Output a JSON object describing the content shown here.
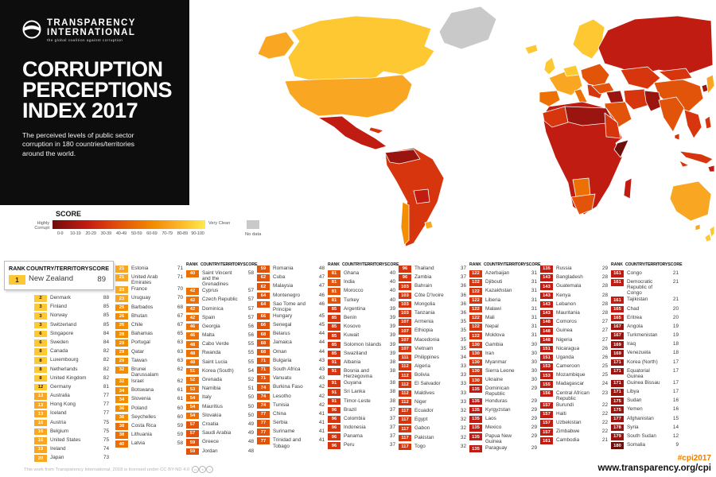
{
  "brand": {
    "logo_line1": "TRANSPARENCY",
    "logo_line2": "INTERNATIONAL",
    "tagline": "the global coalition against corruption",
    "title_lines": [
      "CORRUPTION",
      "PERCEPTIONS",
      "INDEX 2017"
    ],
    "subtitle": "The perceived levels of public sector corruption in 180 countries/territories around the world."
  },
  "legend": {
    "title": "SCORE",
    "left_label": "Highly Corrupt",
    "right_label": "Very Clean",
    "ticks": [
      "0-9",
      "10-19",
      "20-29",
      "30-39",
      "40-49",
      "50-59",
      "60-69",
      "70-79",
      "80-89",
      "90-100"
    ],
    "no_data_label": "No data",
    "no_data_color": "#c9c9c9",
    "scale_colors": [
      "#6e0f0b",
      "#9a1410",
      "#c11c12",
      "#d6350e",
      "#e2540a",
      "#ec7004",
      "#f28e00",
      "#f9a722",
      "#fdc831",
      "#ffe94e"
    ]
  },
  "table": {
    "headers": {
      "rank": "RANK",
      "country": "COUNTRY/TERRITORY",
      "score": "SCORE"
    },
    "columns": [
      {
        "featured": true,
        "header": true,
        "rows": [
          [
            1,
            "New Zealand",
            89
          ],
          [
            2,
            "Denmark",
            88
          ],
          [
            3,
            "Finland",
            85
          ],
          [
            3,
            "Norway",
            85
          ],
          [
            3,
            "Switzerland",
            85
          ],
          [
            6,
            "Singapore",
            84
          ],
          [
            6,
            "Sweden",
            84
          ],
          [
            8,
            "Canada",
            82
          ],
          [
            8,
            "Luxembourg",
            82
          ],
          [
            8,
            "Netherlands",
            82
          ],
          [
            8,
            "United Kingdom",
            82
          ],
          [
            12,
            "Germany",
            81
          ],
          [
            13,
            "Australia",
            77
          ],
          [
            13,
            "Hong Kong",
            77
          ],
          [
            13,
            "Iceland",
            77
          ],
          [
            16,
            "Austria",
            75
          ],
          [
            16,
            "Belgium",
            75
          ],
          [
            16,
            "United States",
            75
          ],
          [
            19,
            "Ireland",
            74
          ],
          [
            20,
            "Japan",
            73
          ]
        ]
      },
      {
        "featured": false,
        "header": false,
        "rows": [
          [
            21,
            "Estonia",
            71
          ],
          [
            21,
            "United Arab Emirates",
            71
          ],
          [
            23,
            "France",
            70
          ],
          [
            23,
            "Uruguay",
            70
          ],
          [
            25,
            "Barbados",
            68
          ],
          [
            26,
            "Bhutan",
            67
          ],
          [
            26,
            "Chile",
            67
          ],
          [
            28,
            "Bahamas",
            65
          ],
          [
            29,
            "Portugal",
            63
          ],
          [
            29,
            "Qatar",
            63
          ],
          [
            29,
            "Taiwan",
            63
          ],
          [
            32,
            "Brunei Darussalam",
            62
          ],
          [
            32,
            "Israel",
            62
          ],
          [
            34,
            "Botswana",
            61
          ],
          [
            34,
            "Slovenia",
            61
          ],
          [
            36,
            "Poland",
            60
          ],
          [
            36,
            "Seychelles",
            60
          ],
          [
            38,
            "Costa Rica",
            59
          ],
          [
            38,
            "Lithuania",
            59
          ],
          [
            40,
            "Latvia",
            58
          ]
        ]
      },
      {
        "featured": false,
        "header": true,
        "rows": [
          [
            40,
            "Saint Vincent and the Grenadines",
            58
          ],
          [
            42,
            "Cyprus",
            57
          ],
          [
            42,
            "Czech Republic",
            57
          ],
          [
            42,
            "Dominica",
            57
          ],
          [
            42,
            "Spain",
            57
          ],
          [
            46,
            "Georgia",
            56
          ],
          [
            46,
            "Malta",
            56
          ],
          [
            48,
            "Cabo Verde",
            55
          ],
          [
            48,
            "Rwanda",
            55
          ],
          [
            48,
            "Saint Lucia",
            55
          ],
          [
            51,
            "Korea (South)",
            54
          ],
          [
            52,
            "Grenada",
            52
          ],
          [
            53,
            "Namibia",
            51
          ],
          [
            54,
            "Italy",
            50
          ],
          [
            54,
            "Mauritius",
            50
          ],
          [
            54,
            "Slovakia",
            50
          ],
          [
            57,
            "Croatia",
            49
          ],
          [
            57,
            "Saudi Arabia",
            49
          ],
          [
            59,
            "Greece",
            48
          ],
          [
            59,
            "Jordan",
            48
          ]
        ]
      },
      {
        "featured": false,
        "header": false,
        "rows": [
          [
            59,
            "Romania",
            48
          ],
          [
            62,
            "Cuba",
            47
          ],
          [
            62,
            "Malaysia",
            47
          ],
          [
            64,
            "Montenegro",
            46
          ],
          [
            64,
            "Sao Tome and Principe",
            46
          ],
          [
            66,
            "Hungary",
            45
          ],
          [
            66,
            "Senegal",
            45
          ],
          [
            68,
            "Belarus",
            44
          ],
          [
            68,
            "Jamaica",
            44
          ],
          [
            68,
            "Oman",
            44
          ],
          [
            71,
            "Bulgaria",
            43
          ],
          [
            71,
            "South Africa",
            43
          ],
          [
            71,
            "Vanuatu",
            43
          ],
          [
            74,
            "Burkina Faso",
            42
          ],
          [
            74,
            "Lesotho",
            42
          ],
          [
            74,
            "Tunisia",
            42
          ],
          [
            77,
            "China",
            41
          ],
          [
            77,
            "Serbia",
            41
          ],
          [
            77,
            "Suriname",
            41
          ],
          [
            77,
            "Trinidad and Tobago",
            41
          ]
        ]
      },
      {
        "featured": false,
        "header": true,
        "rows": [
          [
            81,
            "Ghana",
            40
          ],
          [
            81,
            "India",
            40
          ],
          [
            81,
            "Morocco",
            40
          ],
          [
            81,
            "Turkey",
            40
          ],
          [
            85,
            "Argentina",
            39
          ],
          [
            85,
            "Benin",
            39
          ],
          [
            85,
            "Kosovo",
            39
          ],
          [
            85,
            "Kuwait",
            39
          ],
          [
            85,
            "Solomon Islands",
            39
          ],
          [
            85,
            "Swaziland",
            39
          ],
          [
            91,
            "Albania",
            38
          ],
          [
            91,
            "Bosnia and Herzegovina",
            38
          ],
          [
            91,
            "Guyana",
            38
          ],
          [
            91,
            "Sri Lanka",
            38
          ],
          [
            91,
            "Timor-Leste",
            38
          ],
          [
            96,
            "Brazil",
            37
          ],
          [
            96,
            "Colombia",
            37
          ],
          [
            96,
            "Indonesia",
            37
          ],
          [
            96,
            "Panama",
            37
          ],
          [
            96,
            "Peru",
            37
          ]
        ]
      },
      {
        "featured": false,
        "header": false,
        "rows": [
          [
            96,
            "Thailand",
            37
          ],
          [
            96,
            "Zambia",
            37
          ],
          [
            103,
            "Bahrain",
            36
          ],
          [
            103,
            "Côte D'Ivoire",
            36
          ],
          [
            103,
            "Mongolia",
            36
          ],
          [
            103,
            "Tanzania",
            36
          ],
          [
            107,
            "Armenia",
            35
          ],
          [
            107,
            "Ethiopia",
            35
          ],
          [
            107,
            "Macedonia",
            35
          ],
          [
            107,
            "Vietnam",
            35
          ],
          [
            111,
            "Philippines",
            34
          ],
          [
            112,
            "Algeria",
            33
          ],
          [
            112,
            "Bolivia",
            33
          ],
          [
            112,
            "El Salvador",
            33
          ],
          [
            112,
            "Maldives",
            33
          ],
          [
            112,
            "Niger",
            33
          ],
          [
            117,
            "Ecuador",
            32
          ],
          [
            117,
            "Egypt",
            32
          ],
          [
            117,
            "Gabon",
            32
          ],
          [
            117,
            "Pakistan",
            32
          ],
          [
            117,
            "Togo",
            32
          ]
        ]
      },
      {
        "featured": false,
        "header": true,
        "rows": [
          [
            122,
            "Azerbaijan",
            31
          ],
          [
            122,
            "Djibouti",
            31
          ],
          [
            122,
            "Kazakhstan",
            31
          ],
          [
            122,
            "Liberia",
            31
          ],
          [
            122,
            "Malawi",
            31
          ],
          [
            122,
            "Mali",
            31
          ],
          [
            122,
            "Nepal",
            31
          ],
          [
            122,
            "Moldova",
            31
          ],
          [
            130,
            "Gambia",
            30
          ],
          [
            130,
            "Iran",
            30
          ],
          [
            130,
            "Myanmar",
            30
          ],
          [
            130,
            "Sierra Leone",
            30
          ],
          [
            130,
            "Ukraine",
            30
          ],
          [
            135,
            "Dominican Republic",
            29
          ],
          [
            135,
            "Honduras",
            29
          ],
          [
            135,
            "Kyrgyzstan",
            29
          ],
          [
            135,
            "Laos",
            29
          ],
          [
            135,
            "Mexico",
            29
          ],
          [
            135,
            "Papua New Guinea",
            29
          ],
          [
            135,
            "Paraguay",
            29
          ]
        ]
      },
      {
        "featured": false,
        "header": false,
        "rows": [
          [
            135,
            "Russia",
            29
          ],
          [
            143,
            "Bangladesh",
            28
          ],
          [
            143,
            "Guatemala",
            28
          ],
          [
            143,
            "Kenya",
            28
          ],
          [
            143,
            "Lebanon",
            28
          ],
          [
            143,
            "Mauritania",
            28
          ],
          [
            148,
            "Comoros",
            27
          ],
          [
            148,
            "Guinea",
            27
          ],
          [
            148,
            "Nigeria",
            27
          ],
          [
            151,
            "Nicaragua",
            26
          ],
          [
            151,
            "Uganda",
            26
          ],
          [
            153,
            "Cameroon",
            25
          ],
          [
            153,
            "Mozambique",
            25
          ],
          [
            155,
            "Madagascar",
            24
          ],
          [
            156,
            "Central African Republic",
            23
          ],
          [
            157,
            "Burundi",
            22
          ],
          [
            157,
            "Haiti",
            22
          ],
          [
            157,
            "Uzbekistan",
            22
          ],
          [
            157,
            "Zimbabwe",
            22
          ],
          [
            161,
            "Cambodia",
            21
          ]
        ]
      },
      {
        "featured": false,
        "header": true,
        "rows": [
          [
            161,
            "Congo",
            21
          ],
          [
            161,
            "Democratic Republic of Congo",
            21
          ],
          [
            161,
            "Tajikistan",
            21
          ],
          [
            165,
            "Chad",
            20
          ],
          [
            165,
            "Eritrea",
            20
          ],
          [
            167,
            "Angola",
            19
          ],
          [
            167,
            "Turkmenistan",
            19
          ],
          [
            169,
            "Iraq",
            18
          ],
          [
            169,
            "Venezuela",
            18
          ],
          [
            171,
            "Korea (North)",
            17
          ],
          [
            171,
            "Equatorial Guinea",
            17
          ],
          [
            171,
            "Guinea Bissau",
            17
          ],
          [
            171,
            "Libya",
            17
          ],
          [
            175,
            "Sudan",
            16
          ],
          [
            175,
            "Yemen",
            16
          ],
          [
            177,
            "Afghanistan",
            15
          ],
          [
            178,
            "Syria",
            14
          ],
          [
            179,
            "South Sudan",
            12
          ],
          [
            180,
            "Somalia",
            9
          ]
        ]
      }
    ]
  },
  "footer": {
    "license": "This work from Transparency International, 2018 is licensed under CC BY-ND 4.0",
    "cc_icons": [
      "cc",
      "b",
      "="
    ],
    "hashtag": "#cpi2017",
    "url": "www.transparency.org/cpi",
    "accent_color": "#ef7d00"
  }
}
